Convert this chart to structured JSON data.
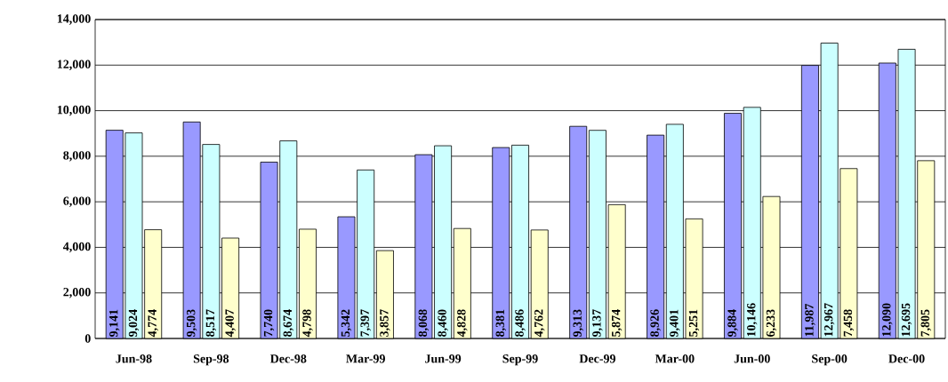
{
  "chart_data": {
    "type": "bar",
    "categories": [
      "Jun-98",
      "Sep-98",
      "Dec-98",
      "Mar-99",
      "Jun-99",
      "Sep-99",
      "Dec-99",
      "Mar-00",
      "Jun-00",
      "Sep-00",
      "Dec-00"
    ],
    "series": [
      {
        "color": "#9999ff",
        "values": [
          9141,
          9503,
          7740,
          5342,
          8068,
          8381,
          9313,
          8926,
          9884,
          11987,
          12090
        ],
        "value_labels": [
          "9,141",
          "9,503",
          "7,740",
          "5,342",
          "8,068",
          "8,381",
          "9,313",
          "8,926",
          "9,884",
          "11,987",
          "12,090"
        ]
      },
      {
        "color": "#ccffff",
        "values": [
          9024,
          8517,
          8674,
          7397,
          8460,
          8486,
          9137,
          9401,
          10146,
          12967,
          12695
        ],
        "value_labels": [
          "9,024",
          "8,517",
          "8,674",
          "7,397",
          "8,460",
          "8,486",
          "9,137",
          "9,401",
          "10,146",
          "12,967",
          "12,695"
        ]
      },
      {
        "color": "#ffffcc",
        "values": [
          4774,
          4407,
          4798,
          3857,
          4828,
          4762,
          5874,
          5251,
          6233,
          7458,
          7805
        ],
        "value_labels": [
          "4,774",
          "4,407",
          "4,798",
          "3,857",
          "4,828",
          "4,762",
          "5,874",
          "5,251",
          "6,233",
          "7,458",
          "7,805"
        ]
      }
    ],
    "ylim": [
      0,
      14000
    ],
    "yticks": [
      0,
      {
        "value": 2000,
        "label": "2,000"
      },
      {
        "value": 4000,
        "label": "4,000"
      },
      {
        "value": 6000,
        "label": "6,000"
      },
      {
        "value": 8000,
        "label": "8,000"
      },
      {
        "value": 10000,
        "label": "10,000"
      },
      {
        "value": 12000,
        "label": "12,000"
      },
      {
        "value": 14000,
        "label": "14,000"
      }
    ],
    "grid": "y"
  }
}
